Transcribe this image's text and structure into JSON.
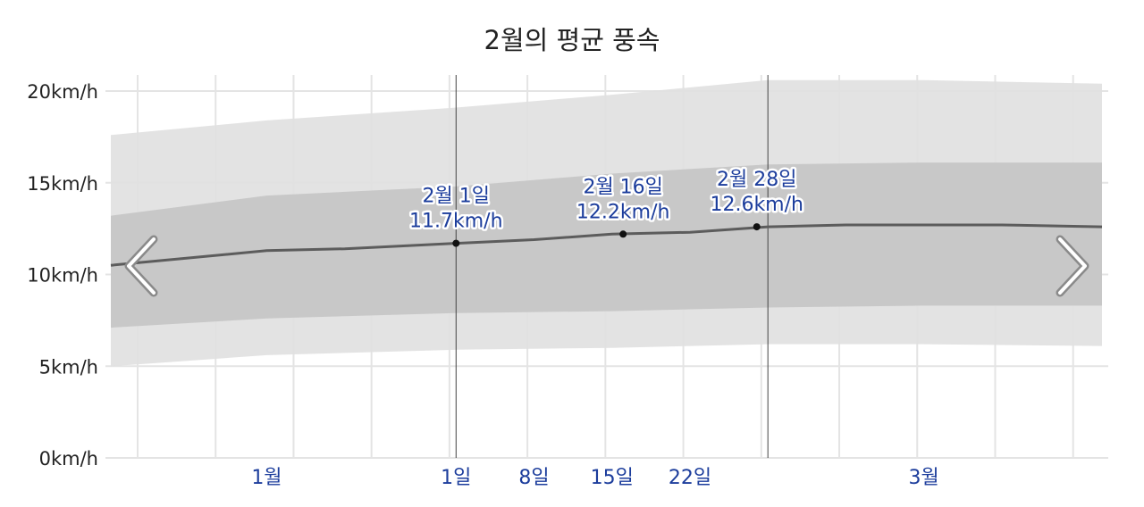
{
  "title": "2월의 평균 풍속",
  "chart_data": {
    "type": "area",
    "title": "2월의 평균 풍속",
    "ylabel": "",
    "ylim": [
      0,
      20
    ],
    "y_unit": "km/h",
    "y_ticks": [
      {
        "value": 0,
        "label": "0km/h"
      },
      {
        "value": 5,
        "label": "5km/h"
      },
      {
        "value": 10,
        "label": "10km/h"
      },
      {
        "value": 15,
        "label": "15km/h"
      },
      {
        "value": 20,
        "label": "20km/h"
      }
    ],
    "x_range": [
      "1월 1일",
      "3월 31일"
    ],
    "x_ticks": [
      {
        "date": "1월 15일",
        "label": "1월"
      },
      {
        "date": "2월 1일",
        "label": "1일"
      },
      {
        "date": "2월 8일",
        "label": "8일"
      },
      {
        "date": "2월 15일",
        "label": "15일"
      },
      {
        "date": "2월 22일",
        "label": "22일"
      },
      {
        "date": "3월 15일",
        "label": "3월"
      }
    ],
    "highlight_month_bounds": [
      "2월 1일",
      "3월 1일"
    ],
    "series": [
      {
        "role": "mean",
        "x": [
          "1월 1일",
          "1월 8일",
          "1월 15일",
          "1월 22일",
          "2월 1일",
          "2월 8일",
          "2월 15일",
          "2월 22일",
          "3월 1일",
          "3월 8일",
          "3월 15일",
          "3월 22일",
          "3월 31일"
        ],
        "values": [
          10.5,
          10.9,
          11.3,
          11.4,
          11.7,
          11.9,
          12.2,
          12.3,
          12.6,
          12.7,
          12.7,
          12.7,
          12.6
        ]
      },
      {
        "role": "band-25-75",
        "x": [
          "1월 1일",
          "1월 15일",
          "2월 1일",
          "2월 15일",
          "3월 1일",
          "3월 15일",
          "3월 31일"
        ],
        "upper": [
          13.2,
          14.3,
          14.8,
          15.5,
          16.0,
          16.1,
          16.1
        ],
        "lower": [
          7.1,
          7.6,
          7.9,
          8.0,
          8.2,
          8.3,
          8.3
        ]
      },
      {
        "role": "band-10-90",
        "x": [
          "1월 1일",
          "1월 15일",
          "2월 1일",
          "2월 15일",
          "3월 1일",
          "3월 15일",
          "3월 31일"
        ],
        "upper": [
          17.6,
          18.4,
          19.1,
          19.8,
          20.6,
          20.6,
          20.4
        ],
        "lower": [
          5.0,
          5.6,
          5.9,
          6.0,
          6.2,
          6.2,
          6.1
        ]
      }
    ],
    "annotations": [
      {
        "date": "2월 1일",
        "label": "2월 1일",
        "value_label": "11.7km/h",
        "value": 11.7
      },
      {
        "date": "2월 16일",
        "label": "2월 16일",
        "value_label": "12.2km/h",
        "value": 12.2
      },
      {
        "date": "2월 28일",
        "label": "2월 28일",
        "value_label": "12.6km/h",
        "value": 12.6
      }
    ],
    "grid": true
  },
  "colors": {
    "band_outer": "#e0e0e0",
    "band_inner": "#c6c6c6",
    "mean_line": "#5c5c5c",
    "label_blue": "#1c3d9c",
    "grid": "#e4e4e4"
  },
  "nav": {
    "prev_icon": "chevron-left-icon",
    "next_icon": "chevron-right-icon"
  }
}
